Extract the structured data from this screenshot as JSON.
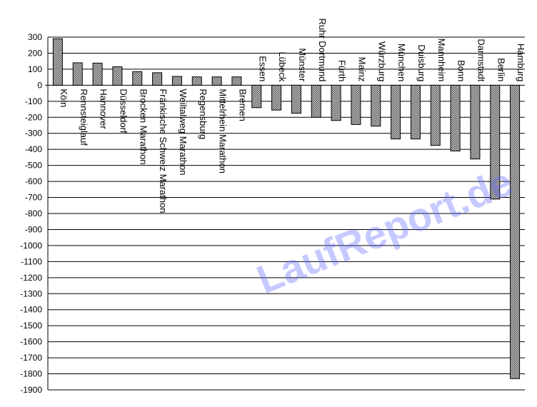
{
  "watermark": "LaufReport.de",
  "colors": {
    "bar_fill": "#9a9a9a",
    "bar_stroke": "#000000",
    "grid": "#000000"
  },
  "chart_data": {
    "type": "bar",
    "title": "",
    "xlabel": "",
    "ylabel": "",
    "ylim": [
      -1900,
      300
    ],
    "ytick_step": 100,
    "grid": true,
    "legend": "none",
    "categories": [
      "Köln",
      "Rennsteiglauf",
      "Hannover",
      "Düsseldorf",
      "Brocken Marathon",
      "Fränkische Schweiz Marathon",
      "Weiltalweg Marathon",
      "Regensburg",
      "Mittelrhein Marathon",
      "Bremen",
      "Essen",
      "Lübeck",
      "Münster",
      "Ruhr Dortmund",
      "Fürth",
      "Mainz",
      "Würzburg",
      "München",
      "Duisburg",
      "Mannheim",
      "Bonn",
      "Darmstadt",
      "Berlin",
      "Hamburg"
    ],
    "values": [
      290,
      140,
      138,
      115,
      85,
      78,
      55,
      52,
      52,
      52,
      -140,
      -155,
      -175,
      -200,
      -220,
      -245,
      -255,
      -335,
      -335,
      -375,
      -410,
      -460,
      -710,
      -1830
    ]
  }
}
